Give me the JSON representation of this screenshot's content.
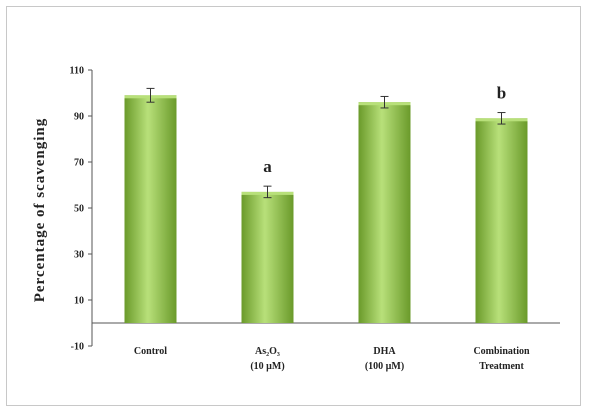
{
  "chart_data": {
    "type": "bar",
    "title": "",
    "xlabel": "",
    "ylabel": "Percentage of scavenging",
    "ylim": [
      -10,
      110
    ],
    "yticks": [
      -10,
      10,
      30,
      50,
      70,
      90,
      110
    ],
    "categories": [
      [
        "Control"
      ],
      [
        "As₂O₃",
        "(10 µM)"
      ],
      [
        "DHA",
        "(100 µM)"
      ],
      [
        "Combination",
        "Treatment"
      ]
    ],
    "values": [
      99,
      57,
      96,
      89
    ],
    "errors": [
      3,
      2.5,
      2.5,
      2.5
    ],
    "annotations": [
      "",
      "a",
      "",
      "b"
    ],
    "grid": false,
    "legend": "none",
    "bar_color": "#8dc63f",
    "bar_highlight": "#b8e07a",
    "bar_shadow": "#6a9a2a"
  }
}
